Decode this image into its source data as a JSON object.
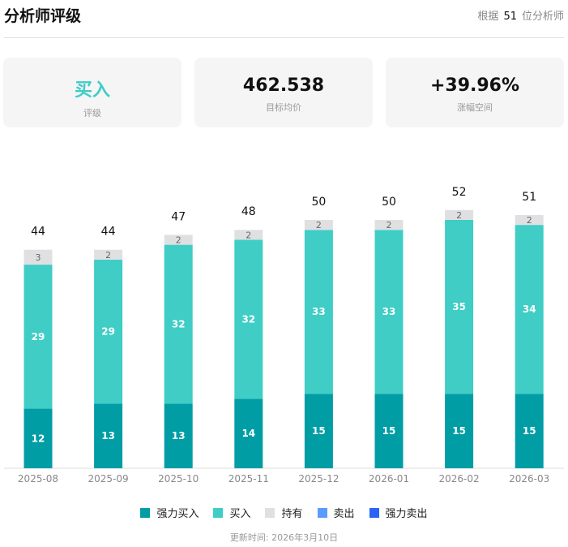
{
  "header": {
    "title": "分析师评级",
    "prefix": "根据",
    "count": "51",
    "suffix": "位分析师"
  },
  "cards": [
    {
      "value": "买入",
      "label": "评级"
    },
    {
      "value": "462.538",
      "label": "目标均价"
    },
    {
      "value": "+39.96%",
      "label": "涨幅空间"
    }
  ],
  "colors": {
    "strong_buy": "#009da5",
    "buy": "#3fcdc6",
    "hold": "#e0e0e3",
    "sell": "#5b9bff",
    "strong_sell": "#2a64f5",
    "rating": "#3fcdc6"
  },
  "chart_data": {
    "type": "bar",
    "stacked": true,
    "categories": [
      "2025-08",
      "2025-09",
      "2025-10",
      "2025-11",
      "2025-12",
      "2026-01",
      "2026-02",
      "2026-03"
    ],
    "series": [
      {
        "name": "强力买入",
        "values": [
          12,
          13,
          13,
          14,
          15,
          15,
          15,
          15
        ]
      },
      {
        "name": "买入",
        "values": [
          29,
          29,
          32,
          32,
          33,
          33,
          35,
          34
        ]
      },
      {
        "name": "持有",
        "values": [
          3,
          2,
          2,
          2,
          2,
          2,
          2,
          2
        ]
      },
      {
        "name": "卖出",
        "values": [
          0,
          0,
          0,
          0,
          0,
          0,
          0,
          0
        ]
      },
      {
        "name": "强力卖出",
        "values": [
          0,
          0,
          0,
          0,
          0,
          0,
          0,
          0
        ]
      }
    ],
    "totals": [
      44,
      44,
      47,
      48,
      50,
      50,
      52,
      51
    ],
    "legend": "bottom"
  },
  "updated": "更新时间: 2026年3月10日"
}
